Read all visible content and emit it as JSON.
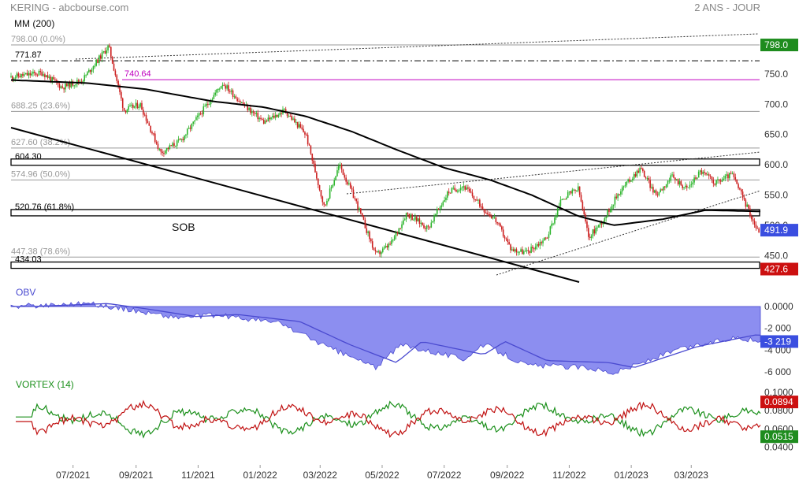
{
  "header": {
    "symbol_source": "KERING - abcbourse.com",
    "period": "2 ANS - JOUR"
  },
  "colors": {
    "bull_candle": "#2db52d",
    "bear_candle": "#cc2020",
    "ma_line": "#000000",
    "obv_fill": "#8c8ef0",
    "obv_line": "#4a4ad0",
    "vortex_plus": "#1a8f1a",
    "vortex_minus": "#c01010",
    "magenta": "#c000c0",
    "tag_green": "#1e8c1e",
    "tag_red": "#cc1010",
    "tag_blue": "#3a4ee0"
  },
  "chart_data": [
    {
      "type": "candlestick",
      "title": "MM (200)",
      "x_ticks": [
        "07/2021",
        "09/2021",
        "11/2021",
        "01/2022",
        "03/2022",
        "05/2022",
        "07/2022",
        "09/2022",
        "11/2022",
        "01/2023",
        "03/2023"
      ],
      "y_ticks": [
        450,
        500,
        550,
        600,
        650,
        700,
        750,
        798
      ],
      "ylim": [
        410,
        815
      ],
      "price_path": [
        {
          "date": "2021-05",
          "close": 745
        },
        {
          "date": "2021-06",
          "close": 752
        },
        {
          "date": "2021-06-20",
          "close": 728
        },
        {
          "date": "2021-07-10",
          "close": 740
        },
        {
          "date": "2021-08-05",
          "close": 796
        },
        {
          "date": "2021-08-20",
          "close": 690
        },
        {
          "date": "2021-09-05",
          "close": 700
        },
        {
          "date": "2021-09-25",
          "close": 620
        },
        {
          "date": "2021-10-15",
          "close": 640
        },
        {
          "date": "2021-11-10",
          "close": 700
        },
        {
          "date": "2021-11-25",
          "close": 735
        },
        {
          "date": "2021-12-15",
          "close": 700
        },
        {
          "date": "2022-01-05",
          "close": 670
        },
        {
          "date": "2022-01-25",
          "close": 690
        },
        {
          "date": "2022-02-15",
          "close": 650
        },
        {
          "date": "2022-03-05",
          "close": 530
        },
        {
          "date": "2022-03-20",
          "close": 600
        },
        {
          "date": "2022-04-05",
          "close": 540
        },
        {
          "date": "2022-04-25",
          "close": 450
        },
        {
          "date": "2022-05-10",
          "close": 470
        },
        {
          "date": "2022-05-25",
          "close": 520
        },
        {
          "date": "2022-06-15",
          "close": 495
        },
        {
          "date": "2022-07-05",
          "close": 555
        },
        {
          "date": "2022-07-20",
          "close": 565
        },
        {
          "date": "2022-08-10",
          "close": 525
        },
        {
          "date": "2022-08-20",
          "close": 510
        },
        {
          "date": "2022-09-05",
          "close": 460
        },
        {
          "date": "2022-09-20",
          "close": 455
        },
        {
          "date": "2022-10-10",
          "close": 480
        },
        {
          "date": "2022-10-25",
          "close": 545
        },
        {
          "date": "2022-11-10",
          "close": 560
        },
        {
          "date": "2022-11-20",
          "close": 480
        },
        {
          "date": "2022-12-05",
          "close": 510
        },
        {
          "date": "2022-12-20",
          "close": 555
        },
        {
          "date": "2023-01-10",
          "close": 595
        },
        {
          "date": "2023-01-25",
          "close": 550
        },
        {
          "date": "2023-02-10",
          "close": 580
        },
        {
          "date": "2023-02-25",
          "close": 560
        },
        {
          "date": "2023-03-10",
          "close": 590
        },
        {
          "date": "2023-03-25",
          "close": 570
        },
        {
          "date": "2023-04-10",
          "close": 585
        },
        {
          "date": "2023-04-25",
          "close": 530
        },
        {
          "date": "2023-05-05",
          "close": 491.9
        }
      ],
      "moving_average": {
        "name": "MM (200)",
        "path": [
          {
            "date": "2021-05",
            "value": 740
          },
          {
            "date": "2021-07-15",
            "value": 735
          },
          {
            "date": "2021-09-10",
            "value": 725
          },
          {
            "date": "2021-11-15",
            "value": 705
          },
          {
            "date": "2022-01-05",
            "value": 695
          },
          {
            "date": "2022-02-15",
            "value": 680
          },
          {
            "date": "2022-04-01",
            "value": 655
          },
          {
            "date": "2022-05-15",
            "value": 625
          },
          {
            "date": "2022-07-01",
            "value": 595
          },
          {
            "date": "2022-08-15",
            "value": 575
          },
          {
            "date": "2022-09-25",
            "value": 550
          },
          {
            "date": "2022-11-10",
            "value": 515
          },
          {
            "date": "2022-12-15",
            "value": 500
          },
          {
            "date": "2023-02-01",
            "value": 510
          },
          {
            "date": "2023-03-15",
            "value": 525
          },
          {
            "date": "2023-05-05",
            "value": 523
          }
        ]
      },
      "levels": [
        {
          "label": "798.00",
          "pct": "(0.0%)",
          "value": 798.0,
          "style": "fib"
        },
        {
          "label": "771.87",
          "value": 771.87,
          "style": "dashdot"
        },
        {
          "label": "740.64",
          "value": 740.64,
          "style": "magenta"
        },
        {
          "label": "688.25",
          "pct": "(23.6%)",
          "value": 688.25,
          "style": "fib"
        },
        {
          "label": "627.60",
          "pct": "(38.2%)",
          "value": 627.6,
          "style": "fib"
        },
        {
          "label": "604.30",
          "value": 604.3,
          "style": "box"
        },
        {
          "label": "574.96",
          "pct": "(50.0%)",
          "value": 574.96,
          "style": "fib"
        },
        {
          "label": "520.76",
          "pct": "(61.8%)",
          "value": 520.76,
          "style": "box"
        },
        {
          "label": "447.38",
          "pct": "(78.6%)",
          "value": 447.38,
          "style": "fib"
        },
        {
          "label": "434.03",
          "value": 434.03,
          "style": "box"
        }
      ],
      "annotation": "SOB",
      "last_value_tags": [
        "798.0",
        "491.9",
        "427.6"
      ]
    },
    {
      "type": "area",
      "title": "OBV",
      "y_ticks": [
        "0.0000",
        "-2 000",
        "-4 000",
        "-6 000"
      ],
      "ylim": [
        -6300,
        800
      ],
      "last_value": "-3 219",
      "path": [
        {
          "date": "2021-05",
          "value": 0
        },
        {
          "date": "2021-07-15",
          "value": 300
        },
        {
          "date": "2021-08-20",
          "value": -200
        },
        {
          "date": "2021-10-10",
          "value": -1000
        },
        {
          "date": "2021-11-20",
          "value": -800
        },
        {
          "date": "2022-01-20",
          "value": -1500
        },
        {
          "date": "2022-03-10",
          "value": -3800
        },
        {
          "date": "2022-04-25",
          "value": -5600
        },
        {
          "date": "2022-05-20",
          "value": -3500
        },
        {
          "date": "2022-07-20",
          "value": -4800
        },
        {
          "date": "2022-08-10",
          "value": -3500
        },
        {
          "date": "2022-09-20",
          "value": -5400
        },
        {
          "date": "2022-11-20",
          "value": -5600
        },
        {
          "date": "2022-12-15",
          "value": -6100
        },
        {
          "date": "2023-02-15",
          "value": -4000
        },
        {
          "date": "2023-04-15",
          "value": -2800
        },
        {
          "date": "2023-05-05",
          "value": -3219
        }
      ]
    },
    {
      "type": "line",
      "title": "VORTEX (14)",
      "y_ticks": [
        "0.1000",
        "0.0800",
        "0.0600",
        "0.0400"
      ],
      "ylim": [
        0.025,
        0.105
      ],
      "last_values": [
        "0.0894",
        "0.0515"
      ]
    }
  ]
}
